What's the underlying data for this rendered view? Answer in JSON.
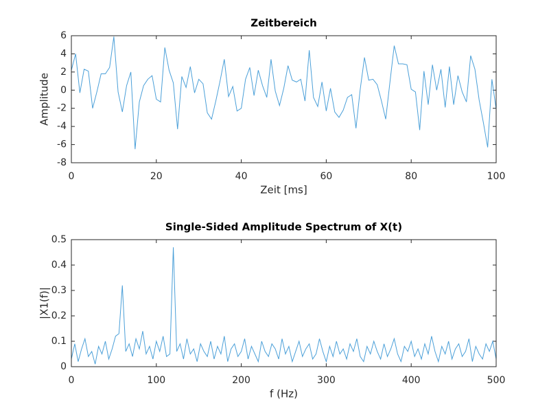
{
  "chart_data": [
    {
      "type": "line",
      "title": "Zeitbereich",
      "x_label": "Zeit [ms]",
      "y_label": "Amplitude",
      "color": "#4a9fd8",
      "x": [
        0,
        1,
        2,
        3,
        4,
        5,
        6,
        7,
        8,
        9,
        10,
        11,
        12,
        13,
        14,
        15,
        16,
        17,
        18,
        19,
        20,
        21,
        22,
        23,
        24,
        25,
        26,
        27,
        28,
        29,
        30,
        31,
        32,
        33,
        34,
        35,
        36,
        37,
        38,
        39,
        40,
        41,
        42,
        43,
        44,
        45,
        46,
        47,
        48,
        49,
        50,
        51,
        52,
        53,
        54,
        55,
        56,
        57,
        58,
        59,
        60,
        61,
        62,
        63,
        64,
        65,
        66,
        67,
        68,
        69,
        70,
        71,
        72,
        73,
        74,
        75,
        76,
        77,
        78,
        79,
        80,
        81,
        82,
        83,
        84,
        85,
        86,
        87,
        88,
        89,
        90,
        91,
        92,
        93,
        94,
        95,
        96,
        97,
        98,
        99,
        100
      ],
      "values": [
        2.2,
        4,
        -0.3,
        2.3,
        2.1,
        -2,
        -0.2,
        1.8,
        1.8,
        2.5,
        5.9,
        -0.2,
        -2.4,
        0.5,
        2,
        -6.5,
        -1.3,
        0.5,
        1.2,
        1.6,
        -1,
        -1.3,
        4.7,
        2.2,
        0.8,
        -4.3,
        1.5,
        0.3,
        2.6,
        -0.3,
        1.2,
        0.7,
        -2.5,
        -3.2,
        -1.2,
        1,
        3.4,
        -0.7,
        0.4,
        -2.3,
        -2,
        1.2,
        2.5,
        -0.6,
        2.2,
        0.5,
        -0.8,
        3.4,
        -0.1,
        -1.7,
        0.2,
        2.7,
        1.1,
        0.9,
        1.2,
        -1.2,
        4.4,
        -0.8,
        -1.8,
        0.9,
        -2.3,
        0.2,
        -2.4,
        -3,
        -2.2,
        -0.8,
        -0.5,
        -4.2,
        0.1,
        3.6,
        1.1,
        1.2,
        0.6,
        -1.2,
        -3.2,
        0.9,
        4.9,
        2.9,
        2.9,
        2.8,
        0.1,
        -0.2,
        -4.4,
        2.1,
        -1.6,
        2.8,
        0,
        2.3,
        -1.9,
        2.6,
        -1.6,
        1.6,
        -0.2,
        -1.3,
        3.8,
        2.3,
        -1.1,
        -3.6,
        -6.3,
        1.2,
        -2.1
      ],
      "xlim": [
        0,
        100
      ],
      "xticks": [
        0,
        20,
        40,
        60,
        80,
        100
      ],
      "ylim": [
        -8,
        6
      ],
      "yticks": [
        -8,
        -6,
        -4,
        -2,
        0,
        2,
        4,
        6
      ]
    },
    {
      "type": "line",
      "title": "Single-Sided Amplitude Spectrum of X(t)",
      "x_label": "f (Hz)",
      "y_label": "|X1(f)|",
      "color": "#4a9fd8",
      "x": [
        0,
        4,
        8,
        12,
        16,
        20,
        24,
        28,
        32,
        36,
        40,
        44,
        48,
        52,
        56,
        60,
        64,
        68,
        72,
        76,
        80,
        84,
        88,
        92,
        96,
        100,
        104,
        108,
        112,
        116,
        120,
        124,
        128,
        132,
        136,
        140,
        144,
        148,
        152,
        156,
        160,
        164,
        168,
        172,
        176,
        180,
        184,
        188,
        192,
        196,
        200,
        204,
        208,
        212,
        216,
        220,
        224,
        228,
        232,
        236,
        240,
        244,
        248,
        252,
        256,
        260,
        264,
        268,
        272,
        276,
        280,
        284,
        288,
        292,
        296,
        300,
        304,
        308,
        312,
        316,
        320,
        324,
        328,
        332,
        336,
        340,
        344,
        348,
        352,
        356,
        360,
        364,
        368,
        372,
        376,
        380,
        384,
        388,
        392,
        396,
        400,
        404,
        408,
        412,
        416,
        420,
        424,
        428,
        432,
        436,
        440,
        444,
        448,
        452,
        456,
        460,
        464,
        468,
        472,
        476,
        480,
        484,
        488,
        492,
        496,
        500
      ],
      "values": [
        0.03,
        0.09,
        0.02,
        0.07,
        0.11,
        0.04,
        0.06,
        0.01,
        0.08,
        0.05,
        0.1,
        0.03,
        0.07,
        0.12,
        0.13,
        0.32,
        0.06,
        0.09,
        0.04,
        0.11,
        0.07,
        0.14,
        0.05,
        0.08,
        0.03,
        0.1,
        0.06,
        0.12,
        0.04,
        0.05,
        0.47,
        0.06,
        0.09,
        0.03,
        0.11,
        0.05,
        0.07,
        0.02,
        0.09,
        0.06,
        0.04,
        0.1,
        0.03,
        0.08,
        0.05,
        0.12,
        0.02,
        0.07,
        0.09,
        0.04,
        0.06,
        0.11,
        0.03,
        0.08,
        0.05,
        0.02,
        0.1,
        0.06,
        0.04,
        0.09,
        0.07,
        0.03,
        0.11,
        0.05,
        0.08,
        0.02,
        0.06,
        0.1,
        0.04,
        0.07,
        0.09,
        0.03,
        0.05,
        0.11,
        0.06,
        0.02,
        0.08,
        0.04,
        0.1,
        0.05,
        0.07,
        0.03,
        0.09,
        0.06,
        0.11,
        0.04,
        0.02,
        0.08,
        0.05,
        0.1,
        0.06,
        0.03,
        0.09,
        0.04,
        0.07,
        0.11,
        0.05,
        0.02,
        0.08,
        0.06,
        0.1,
        0.04,
        0.07,
        0.03,
        0.09,
        0.05,
        0.12,
        0.06,
        0.02,
        0.08,
        0.05,
        0.1,
        0.03,
        0.07,
        0.09,
        0.04,
        0.06,
        0.11,
        0.02,
        0.08,
        0.05,
        0.03,
        0.09,
        0.06,
        0.1,
        0.03
      ],
      "xlim": [
        0,
        500
      ],
      "xticks": [
        0,
        100,
        200,
        300,
        400,
        500
      ],
      "ylim": [
        0,
        0.5
      ],
      "yticks": [
        0,
        0.1,
        0.2,
        0.3,
        0.4,
        0.5
      ]
    }
  ]
}
